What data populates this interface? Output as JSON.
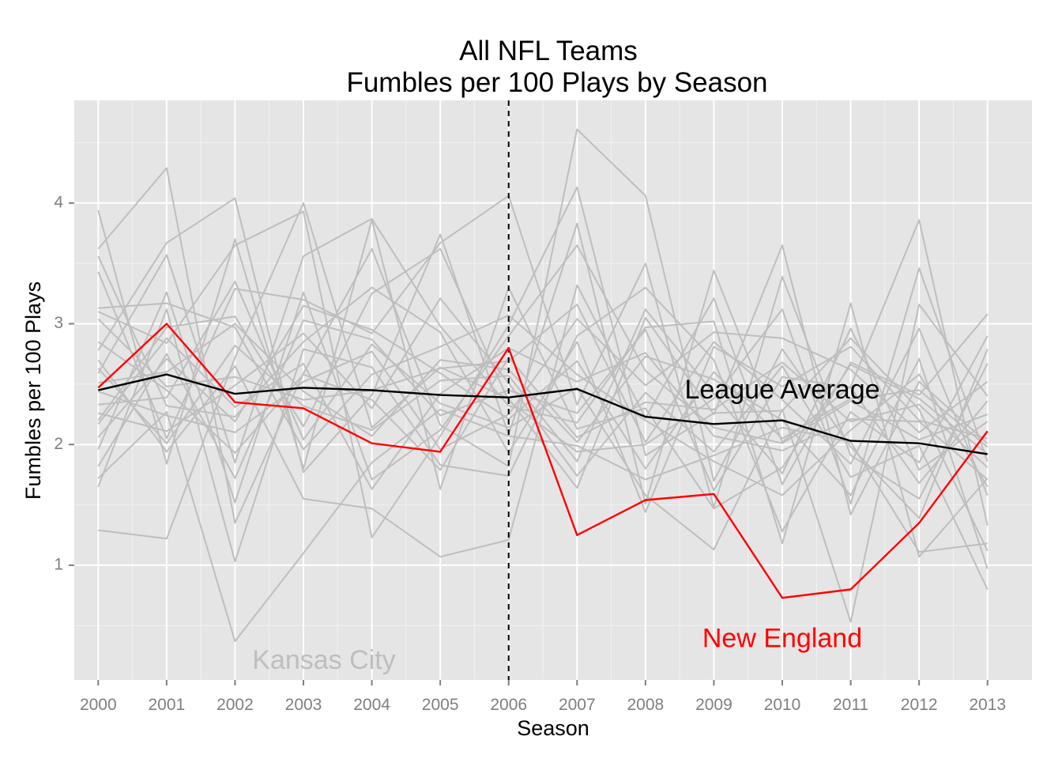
{
  "chart_data": {
    "type": "line",
    "title": "All NFL Teams",
    "subtitle": "Fumbles per 100 Plays by Season",
    "xlabel": "Season",
    "ylabel": "Fumbles per 100 Plays",
    "x": [
      2000,
      2001,
      2002,
      2003,
      2004,
      2005,
      2006,
      2007,
      2008,
      2009,
      2010,
      2011,
      2012,
      2013
    ],
    "x_ticks": [
      "2000",
      "2001",
      "2002",
      "2003",
      "2004",
      "2005",
      "2006",
      "2007",
      "2008",
      "2009",
      "2010",
      "2011",
      "2012",
      "2013"
    ],
    "y_ticks": [
      "1",
      "2",
      "3",
      "4"
    ],
    "xlim": [
      1999.65,
      2013.65
    ],
    "ylim": [
      0.05,
      4.85
    ],
    "grid": true,
    "vline": {
      "x": 2006,
      "style": "dashed",
      "color": "#000000"
    },
    "colors": {
      "team": "#bebebe",
      "highlight": "#ff0000",
      "average": "#000000",
      "panel": "#e5e5e5",
      "grid": "#ffffff"
    },
    "annotations": [
      {
        "text": "League Average",
        "x": 2010.0,
        "y": 2.44,
        "color": "#000000"
      },
      {
        "text": "New England",
        "x": 2010.0,
        "y": 0.38,
        "color": "#ff0000"
      },
      {
        "text": "Kansas City",
        "x": 2003.3,
        "y": 0.2,
        "color": "#bebebe"
      }
    ],
    "highlight": {
      "name": "New England",
      "values": [
        2.47,
        3.0,
        2.35,
        2.3,
        2.01,
        1.94,
        2.8,
        1.25,
        1.54,
        1.59,
        0.73,
        0.8,
        1.35,
        2.11
      ]
    },
    "average": {
      "name": "League Average",
      "values": [
        2.45,
        2.58,
        2.42,
        2.47,
        2.45,
        2.41,
        2.39,
        2.46,
        2.23,
        2.17,
        2.2,
        2.03,
        2.01,
        1.92
      ]
    },
    "teams": [
      {
        "name": "Kansas City",
        "values": [
          1.72,
          2.27,
          0.37,
          1.1,
          1.85,
          2.29,
          2.07,
          1.99,
          1.71,
          1.91,
          2.14,
          2.02,
          1.11,
          1.18
        ]
      },
      {
        "values": [
          3.94,
          1.84,
          3.7,
          1.8,
          3.86,
          1.63,
          3.3,
          2.13,
          2.3,
          1.47,
          1.81,
          2.66,
          2.38,
          1.92
        ]
      },
      {
        "values": [
          3.62,
          4.29,
          1.35,
          2.59,
          3.62,
          2.16,
          1.82,
          4.61,
          4.06,
          1.7,
          2.79,
          1.98,
          1.39,
          2.79
        ]
      },
      {
        "values": [
          2.78,
          3.67,
          4.04,
          1.77,
          2.41,
          3.74,
          2.08,
          3.83,
          1.51,
          3.44,
          2.02,
          2.48,
          3.86,
          1.33
        ]
      },
      {
        "values": [
          1.29,
          1.22,
          2.72,
          4.0,
          2.14,
          2.64,
          2.38,
          1.64,
          3.05,
          2.25,
          3.65,
          1.42,
          2.52,
          2.01
        ]
      },
      {
        "values": [
          3.43,
          2.05,
          3.29,
          3.2,
          2.92,
          3.67,
          4.06,
          2.33,
          3.5,
          1.48,
          3.39,
          1.91,
          1.55,
          2.67
        ]
      },
      {
        "values": [
          3.1,
          2.84,
          3.65,
          3.93,
          1.23,
          2.07,
          2.99,
          4.13,
          1.91,
          2.26,
          2.28,
          2.88,
          2.29,
          1.12
        ]
      },
      {
        "values": [
          2.59,
          3.57,
          1.85,
          3.56,
          3.87,
          2.98,
          2.32,
          2.18,
          2.97,
          3.02,
          1.18,
          3.17,
          1.07,
          1.72
        ]
      },
      {
        "values": [
          2.2,
          2.97,
          3.06,
          2.15,
          3.25,
          3.62,
          2.36,
          1.94,
          2.0,
          2.38,
          3.12,
          1.51,
          3.46,
          1.86
        ]
      },
      {
        "values": [
          1.96,
          3.26,
          1.52,
          3.26,
          1.71,
          2.12,
          2.9,
          3.65,
          2.61,
          2.14,
          2.01,
          2.36,
          2.04,
          2.25
        ]
      },
      {
        "values": [
          2.7,
          1.94,
          2.65,
          1.55,
          1.47,
          1.07,
          1.21,
          3.32,
          2.22,
          3.21,
          1.67,
          2.68,
          2.41,
          3.08
        ]
      },
      {
        "values": [
          2.33,
          2.39,
          3.35,
          2.04,
          2.83,
          2.34,
          2.14,
          2.47,
          1.58,
          1.13,
          2.29,
          0.53,
          3.16,
          2.4
        ]
      },
      {
        "values": [
          1.65,
          3.12,
          1.03,
          2.79,
          2.64,
          1.83,
          1.74,
          2.9,
          3.3,
          2.7,
          1.28,
          2.27,
          1.85,
          2.9
        ]
      },
      {
        "values": [
          2.51,
          2.6,
          3.0,
          2.44,
          2.07,
          2.7,
          2.62,
          2.02,
          2.73,
          2.54,
          2.2,
          1.58,
          2.71,
          0.97
        ]
      },
      {
        "values": [
          3.56,
          2.32,
          2.23,
          2.85,
          3.3,
          2.93,
          1.93,
          2.85,
          1.44,
          2.81,
          2.48,
          2.81,
          2.2,
          2.05
        ]
      },
      {
        "values": [
          2.26,
          2.11,
          2.49,
          2.92,
          2.3,
          3.21,
          2.51,
          1.74,
          2.43,
          1.94,
          2.65,
          1.73,
          1.99,
          0.8
        ]
      },
      {
        "values": [
          2.17,
          2.88,
          2.31,
          2.67,
          1.63,
          2.42,
          2.8,
          2.52,
          2.76,
          2.07,
          1.95,
          2.21,
          2.19,
          1.71
        ]
      },
      {
        "values": [
          3.04,
          2.48,
          2.56,
          2.37,
          2.45,
          2.63,
          2.69,
          3.16,
          2.02,
          2.85,
          2.37,
          1.84,
          2.96,
          1.58
        ]
      },
      {
        "values": [
          1.82,
          2.75,
          1.72,
          3.03,
          2.87,
          2.24,
          2.45,
          2.26,
          2.95,
          1.62,
          2.56,
          2.47,
          1.68,
          2.36
        ]
      },
      {
        "values": [
          3.13,
          3.17,
          2.97,
          1.96,
          2.58,
          2.81,
          3.07,
          2.58,
          2.2,
          1.86,
          1.58,
          2.12,
          2.58,
          1.65
        ]
      },
      {
        "values": [
          2.44,
          2.24,
          2.1,
          2.52,
          2.77,
          1.96,
          2.25,
          3.04,
          2.49,
          2.93,
          2.88,
          2.62,
          2.1,
          2.52
        ]
      },
      {
        "values": [
          2.63,
          2.01,
          2.82,
          2.32,
          2.12,
          2.53,
          2.57,
          1.86,
          3.12,
          2.42,
          1.76,
          2.96,
          1.79,
          2.19
        ]
      },
      {
        "values": [
          2.06,
          2.71,
          2.19,
          3.15,
          2.95,
          2.59,
          2.21,
          2.69,
          1.8,
          2.6,
          2.05,
          2.38,
          2.45,
          1.98
        ]
      },
      {
        "values": [
          2.85,
          2.45,
          1.93,
          2.58,
          2.37,
          1.79,
          2.72,
          2.06,
          2.35,
          2.29,
          2.68,
          2.19,
          2.33,
          1.81
        ]
      }
    ]
  }
}
